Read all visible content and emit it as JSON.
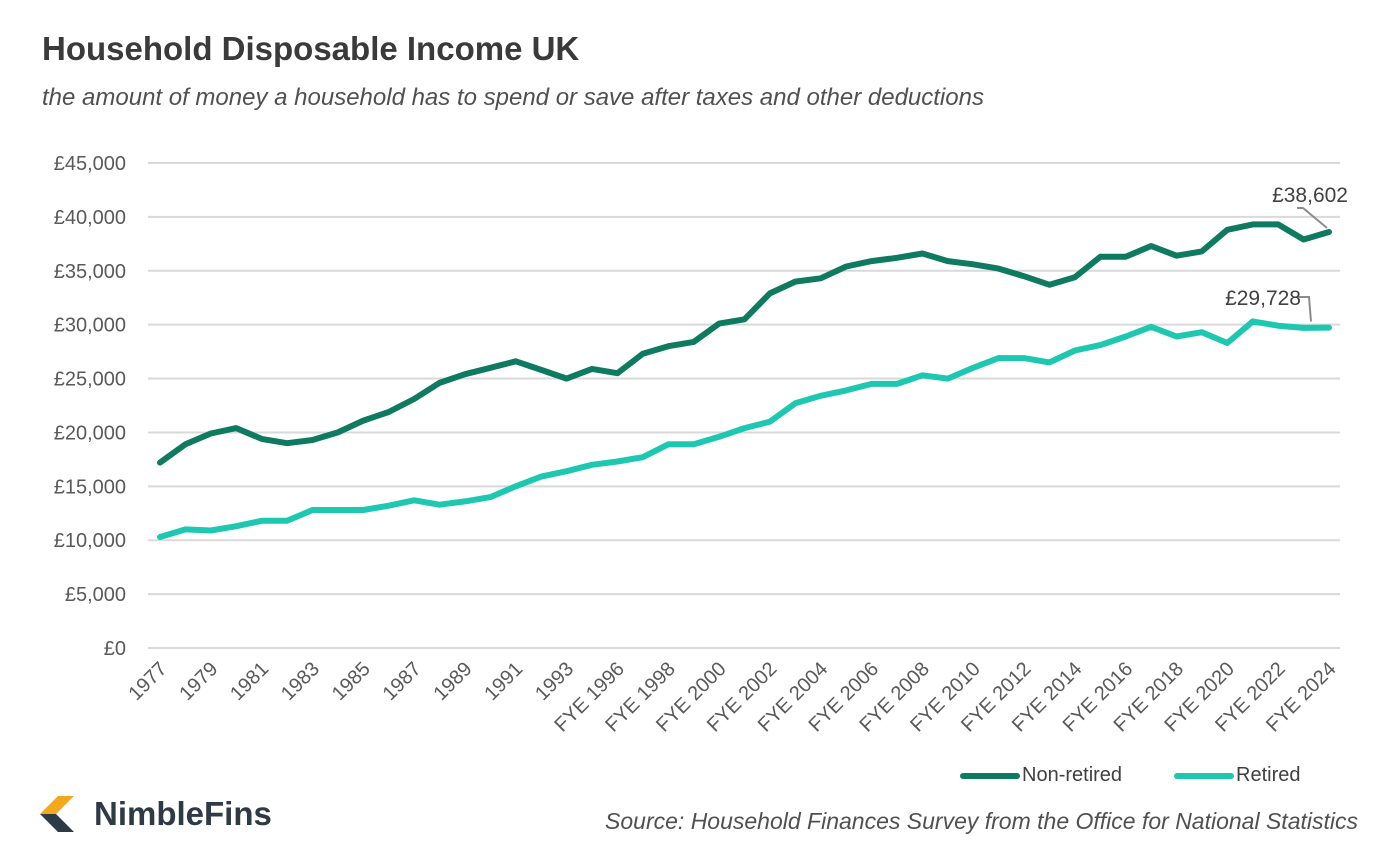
{
  "chart_data": {
    "type": "line",
    "title": "Household Disposable Income UK",
    "subtitle": "the amount of money a household has to spend or save after taxes and other deductions",
    "source": "Source: Household Finances Survey from the Office for National Statistics",
    "ylim": [
      0,
      45000
    ],
    "yticks": [
      "£0",
      "£5,000",
      "£10,000",
      "£15,000",
      "£20,000",
      "£25,000",
      "£30,000",
      "£35,000",
      "£40,000",
      "£45,000"
    ],
    "ytick_values": [
      0,
      5000,
      10000,
      15000,
      20000,
      25000,
      30000,
      35000,
      40000,
      45000
    ],
    "grid": true,
    "legend_position": "bottom-right",
    "x": [
      "1977",
      "1978",
      "1979",
      "1980",
      "1981",
      "1982",
      "1983",
      "1984",
      "1985",
      "1986",
      "1987",
      "1988",
      "1989",
      "1990",
      "1991",
      "1992",
      "1993",
      "1994",
      "FYE 1996",
      "FYE 1997",
      "FYE 1998",
      "FYE 1999",
      "FYE 2000",
      "FYE 2001",
      "FYE 2002",
      "FYE 2003",
      "FYE 2004",
      "FYE 2005",
      "FYE 2006",
      "FYE 2007",
      "FYE 2008",
      "FYE 2009",
      "FYE 2010",
      "FYE 2011",
      "FYE 2012",
      "FYE 2013",
      "FYE 2014",
      "FYE 2015",
      "FYE 2016",
      "FYE 2017",
      "FYE 2018",
      "FYE 2019",
      "FYE 2020",
      "FYE 2021",
      "FYE 2022",
      "FYE 2023",
      "FYE 2024"
    ],
    "xtick_labels": [
      "1977",
      "1979",
      "1981",
      "1983",
      "1985",
      "1987",
      "1989",
      "1991",
      "1993",
      "FYE 1996",
      "FYE 1998",
      "FYE 2000",
      "FYE 2002",
      "FYE 2004",
      "FYE 2006",
      "FYE 2008",
      "FYE 2010",
      "FYE 2012",
      "FYE 2014",
      "FYE 2016",
      "FYE 2018",
      "FYE 2020",
      "FYE 2022",
      "FYE 2024"
    ],
    "series": [
      {
        "name": "Non-retired",
        "color": "#0e7a60",
        "values": [
          17200,
          18900,
          19900,
          20400,
          19400,
          19000,
          19300,
          20000,
          21100,
          21900,
          23100,
          24600,
          25400,
          26000,
          26600,
          25800,
          25000,
          25900,
          25500,
          27300,
          28000,
          28400,
          30100,
          30500,
          32900,
          34000,
          34300,
          35400,
          35900,
          36200,
          36600,
          35900,
          35600,
          35200,
          34500,
          33700,
          34400,
          36300,
          36300,
          37300,
          36400,
          36800,
          38800,
          39300,
          39300,
          37900,
          38602
        ],
        "end_label": "£38,602"
      },
      {
        "name": "Retired",
        "color": "#1ec8b0",
        "values": [
          10300,
          11000,
          10900,
          11300,
          11800,
          11800,
          12800,
          12800,
          12800,
          13200,
          13700,
          13300,
          13600,
          14000,
          15000,
          15900,
          16400,
          17000,
          17300,
          17700,
          18900,
          18900,
          19600,
          20400,
          21000,
          22700,
          23400,
          23900,
          24500,
          24500,
          25300,
          25000,
          26000,
          26900,
          26900,
          26500,
          27600,
          28100,
          28900,
          29800,
          28900,
          29300,
          28300,
          30300,
          29900,
          29700,
          29728
        ],
        "end_label": "£29,728"
      }
    ]
  },
  "brand": {
    "name": "NimbleFins",
    "accent": "#f4a81d",
    "dark": "#2e3a45"
  }
}
